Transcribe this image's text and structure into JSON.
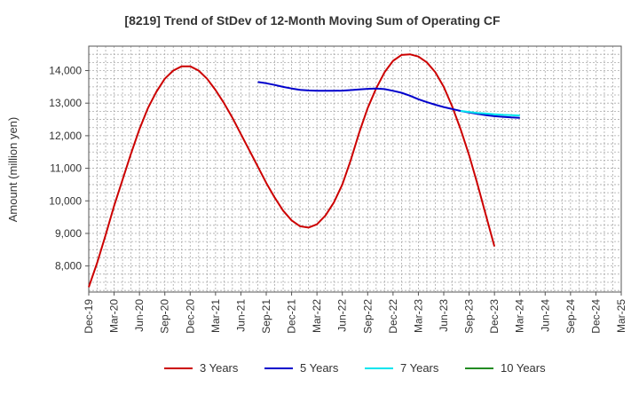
{
  "chart_data": {
    "type": "line",
    "title": "[8219]  Trend of StDev of 12-Month Moving Sum of Operating CF",
    "xlabel": "",
    "ylabel": "Amount (million yen)",
    "ylim": [
      7200,
      14750
    ],
    "yticks": [
      8000,
      9000,
      10000,
      11000,
      12000,
      13000,
      14000
    ],
    "ytick_labels": [
      "8,000",
      "9,000",
      "10,000",
      "11,000",
      "12,000",
      "13,000",
      "14,000"
    ],
    "x_start": "2019-12",
    "x_end": "2025-03",
    "x_tick_labels": [
      "Dec-19",
      "Mar-20",
      "Jun-20",
      "Sep-20",
      "Dec-20",
      "Mar-21",
      "Jun-21",
      "Sep-21",
      "Dec-21",
      "Mar-22",
      "Jun-22",
      "Sep-22",
      "Dec-22",
      "Mar-23",
      "Jun-23",
      "Sep-23",
      "Dec-23",
      "Mar-24",
      "Jun-24",
      "Sep-24",
      "Dec-24",
      "Mar-25"
    ],
    "grid": true,
    "legend_position": "bottom",
    "series": [
      {
        "name": "3 Years",
        "color": "#cc0000",
        "start": "2019-12",
        "values": [
          7350,
          8100,
          8950,
          9850,
          10650,
          11450,
          12200,
          12850,
          13350,
          13750,
          14000,
          14130,
          14130,
          14000,
          13750,
          13400,
          13000,
          12550,
          12050,
          11550,
          11050,
          10550,
          10100,
          9700,
          9400,
          9220,
          9180,
          9280,
          9550,
          9950,
          10500,
          11250,
          12100,
          12850,
          13450,
          13950,
          14300,
          14480,
          14500,
          14430,
          14250,
          13950,
          13500,
          12900,
          12200,
          11400,
          10500,
          9550,
          8600
        ]
      },
      {
        "name": "5 Years",
        "color": "#0000cc",
        "start": "2021-08",
        "values": [
          13650,
          13610,
          13560,
          13500,
          13450,
          13410,
          13390,
          13380,
          13380,
          13380,
          13385,
          13400,
          13420,
          13440,
          13450,
          13430,
          13380,
          13320,
          13230,
          13120,
          13030,
          12950,
          12880,
          12820,
          12760,
          12710,
          12670,
          12630,
          12600,
          12580,
          12560,
          12550
        ]
      },
      {
        "name": "7 Years",
        "color": "#00e5ee",
        "start": "2023-08",
        "values": [
          12760,
          12730,
          12700,
          12680,
          12660,
          12640,
          12630,
          12620
        ]
      },
      {
        "name": "10 Years",
        "color": "#228b22",
        "start": "2024-03",
        "values": []
      }
    ]
  }
}
